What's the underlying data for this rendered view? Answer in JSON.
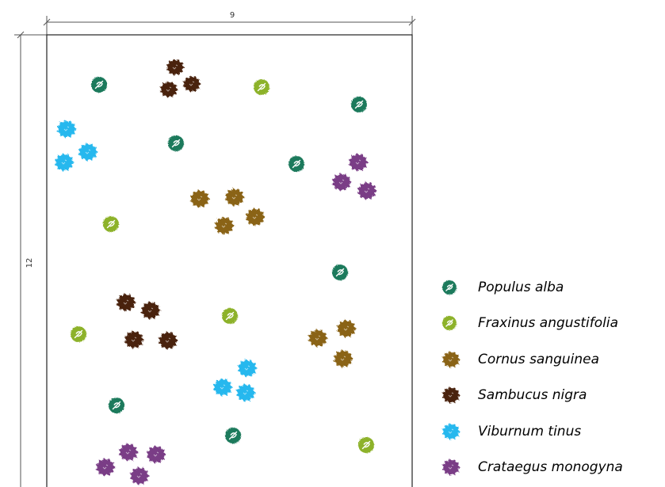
{
  "plan": {
    "width_label": "9",
    "height_label": "12"
  },
  "species": [
    {
      "id": "populus",
      "name": "Populus alba",
      "color": "#1f7a5c",
      "icon": "tree-leaf-icon"
    },
    {
      "id": "fraxinus",
      "name": "Fraxinus angustifolia",
      "color": "#8db22a",
      "icon": "tree-leaf-icon"
    },
    {
      "id": "cornus",
      "name": "Cornus sanguinea",
      "color": "#8a6414",
      "icon": "shrub-icon"
    },
    {
      "id": "sambucus",
      "name": "Sambucus nigra",
      "color": "#4a2410",
      "icon": "shrub-icon"
    },
    {
      "id": "viburnum",
      "name": "Viburnum tinus",
      "color": "#27b8ee",
      "icon": "shrub-icon"
    },
    {
      "id": "crataegus",
      "name": "Crataegus monogyna",
      "color": "#7a3e86",
      "icon": "shrub-icon"
    }
  ]
}
